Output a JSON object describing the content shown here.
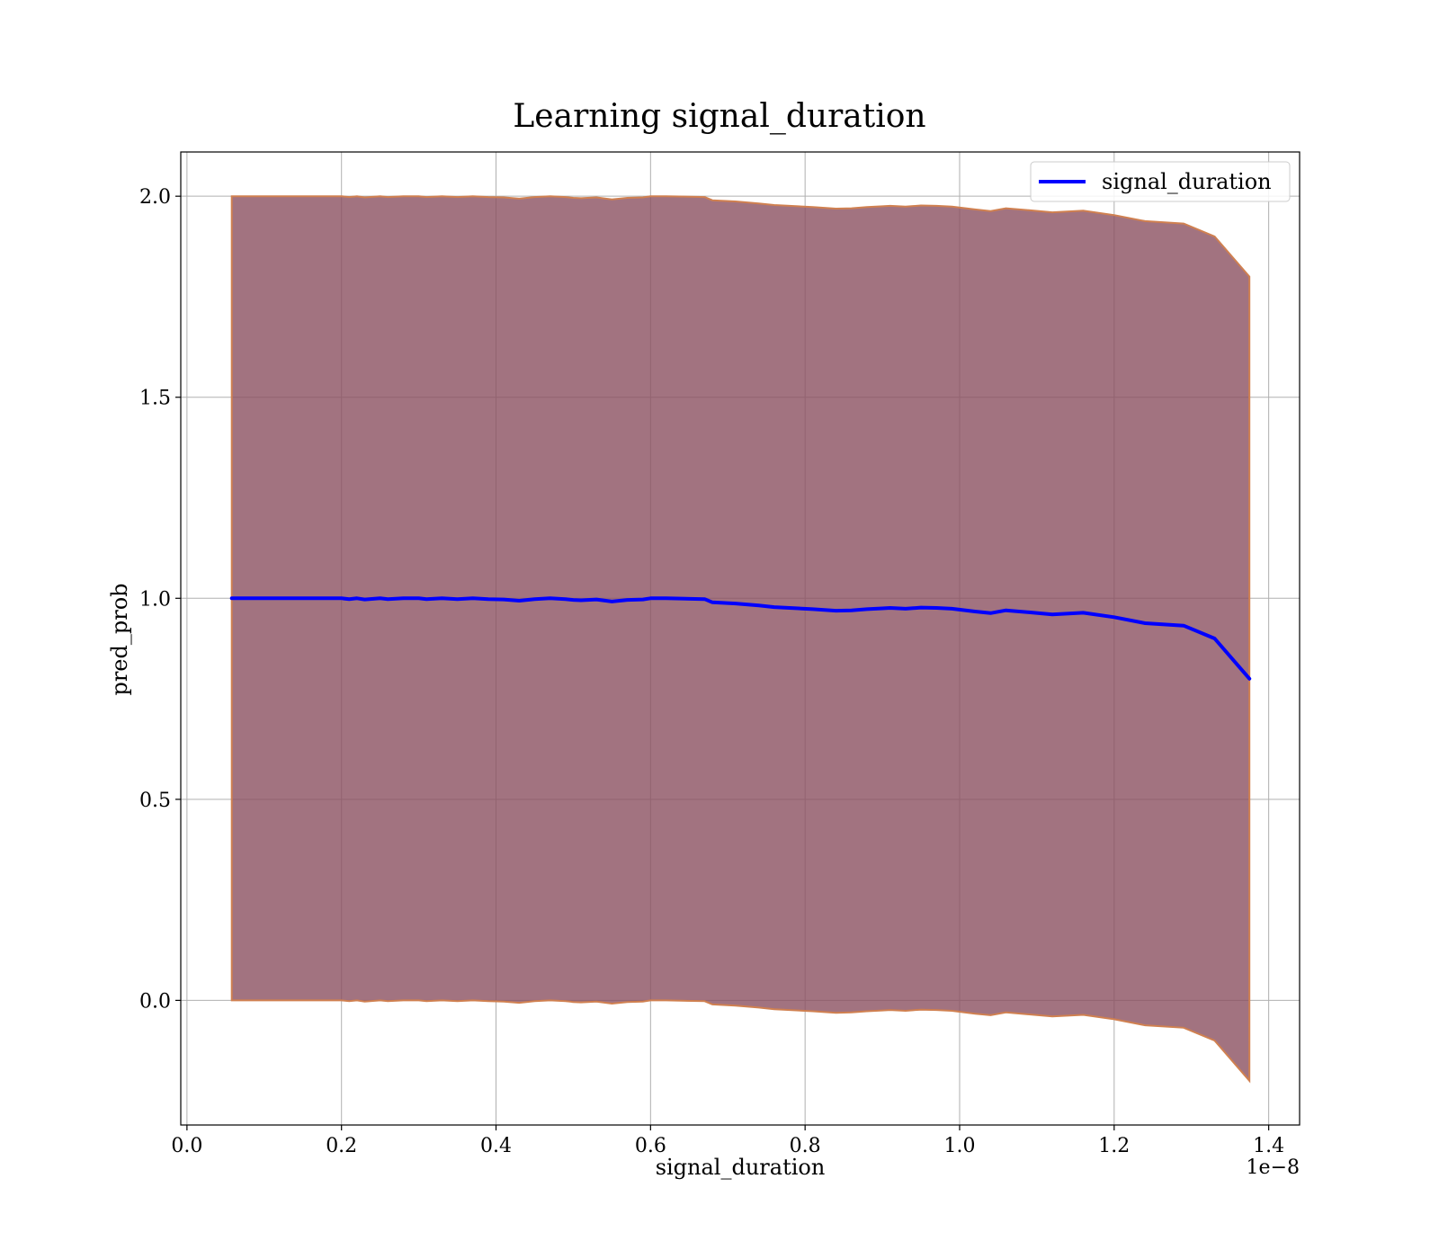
{
  "chart_data": {
    "type": "line",
    "title": "Learning signal_duration",
    "xlabel": "signal_duration",
    "ylabel": "pred_prob",
    "x_offset_text": "1e−8",
    "xlim": [
      -0.008,
      1.44
    ],
    "ylim": [
      -0.31,
      2.11
    ],
    "x_ticks": [
      0.0,
      0.2,
      0.4,
      0.6,
      0.8,
      1.0,
      1.2,
      1.4
    ],
    "x_tick_labels": [
      "0.0",
      "0.2",
      "0.4",
      "0.6",
      "0.8",
      "1.0",
      "1.2",
      "1.4"
    ],
    "y_ticks": [
      0.0,
      0.5,
      1.0,
      1.5,
      2.0
    ],
    "y_tick_labels": [
      "0.0",
      "0.5",
      "1.0",
      "1.5",
      "2.0"
    ],
    "grid": true,
    "legend_position": "top-right",
    "colors": {
      "line": "#0000ff",
      "band_fill": "#8b5060",
      "band_edge": "#d08050",
      "grid": "#b0b0b0"
    },
    "series": [
      {
        "name": "signal_duration",
        "x": [
          0.058,
          0.09,
          0.13,
          0.17,
          0.2,
          0.21,
          0.22,
          0.23,
          0.25,
          0.26,
          0.28,
          0.3,
          0.31,
          0.33,
          0.35,
          0.37,
          0.39,
          0.41,
          0.43,
          0.45,
          0.47,
          0.49,
          0.5,
          0.51,
          0.53,
          0.55,
          0.57,
          0.59,
          0.6,
          0.62,
          0.67,
          0.68,
          0.71,
          0.74,
          0.76,
          0.78,
          0.81,
          0.84,
          0.86,
          0.88,
          0.9,
          0.91,
          0.93,
          0.95,
          0.97,
          0.99,
          1.02,
          1.04,
          1.06,
          1.09,
          1.12,
          1.16,
          1.2,
          1.24,
          1.29,
          1.33,
          1.375
        ],
        "y": [
          1.0,
          1.0,
          1.0,
          1.0,
          1.0,
          0.998,
          1.0,
          0.997,
          1.0,
          0.998,
          1.0,
          1.0,
          0.998,
          1.0,
          0.998,
          1.0,
          0.998,
          0.997,
          0.994,
          0.998,
          1.0,
          0.998,
          0.996,
          0.995,
          0.997,
          0.992,
          0.996,
          0.997,
          1.0,
          1.0,
          0.998,
          0.99,
          0.987,
          0.982,
          0.978,
          0.976,
          0.973,
          0.969,
          0.97,
          0.973,
          0.975,
          0.976,
          0.974,
          0.977,
          0.976,
          0.974,
          0.967,
          0.963,
          0.97,
          0.965,
          0.96,
          0.964,
          0.953,
          0.938,
          0.932,
          0.9,
          0.8
        ],
        "band_upper": [
          2.0,
          2.0,
          2.0,
          2.0,
          2.0,
          1.998,
          2.0,
          1.997,
          2.0,
          1.998,
          2.0,
          2.0,
          1.998,
          2.0,
          1.998,
          2.0,
          1.998,
          1.997,
          1.994,
          1.998,
          2.0,
          1.998,
          1.996,
          1.995,
          1.997,
          1.992,
          1.996,
          1.997,
          2.0,
          2.0,
          1.998,
          1.99,
          1.987,
          1.982,
          1.978,
          1.976,
          1.973,
          1.969,
          1.97,
          1.973,
          1.975,
          1.976,
          1.974,
          1.977,
          1.976,
          1.974,
          1.967,
          1.963,
          1.97,
          1.965,
          1.96,
          1.964,
          1.953,
          1.938,
          1.932,
          1.9,
          1.8
        ],
        "band_lower": [
          0.0,
          0.0,
          0.0,
          0.0,
          0.0,
          -0.002,
          0.0,
          -0.003,
          0.0,
          -0.002,
          0.0,
          0.0,
          -0.002,
          0.0,
          -0.002,
          0.0,
          -0.002,
          -0.003,
          -0.006,
          -0.002,
          0.0,
          -0.002,
          -0.004,
          -0.005,
          -0.003,
          -0.008,
          -0.004,
          -0.003,
          0.0,
          0.0,
          -0.002,
          -0.01,
          -0.013,
          -0.018,
          -0.022,
          -0.024,
          -0.027,
          -0.031,
          -0.03,
          -0.027,
          -0.025,
          -0.024,
          -0.026,
          -0.023,
          -0.024,
          -0.026,
          -0.033,
          -0.037,
          -0.03,
          -0.035,
          -0.04,
          -0.036,
          -0.047,
          -0.062,
          -0.068,
          -0.1,
          -0.2
        ]
      }
    ]
  }
}
